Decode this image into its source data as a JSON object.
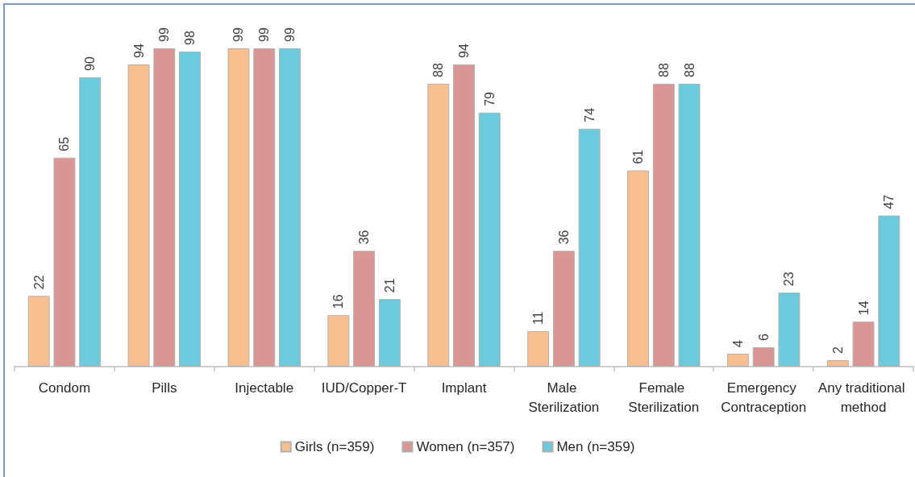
{
  "chart_data": {
    "type": "bar",
    "categories": [
      "Condom",
      "Pills",
      "Injectable",
      "IUD/Copper-T",
      "Implant",
      "Male Sterilization",
      "Female Sterilization",
      "Emergency Contraception",
      "Any traditional method"
    ],
    "series": [
      {
        "name": "Girls (n=359)",
        "color": "#f8c090",
        "values": [
          22,
          94,
          99,
          16,
          88,
          11,
          61,
          4,
          2
        ]
      },
      {
        "name": "Women (n=357)",
        "color": "#d99694",
        "values": [
          65,
          99,
          99,
          36,
          94,
          36,
          88,
          6,
          14
        ]
      },
      {
        "name": "Men (n=359)",
        "color": "#6bcadb",
        "values": [
          90,
          98,
          99,
          21,
          79,
          74,
          88,
          23,
          47
        ]
      }
    ],
    "data_labels": true,
    "legend": "bottom"
  }
}
